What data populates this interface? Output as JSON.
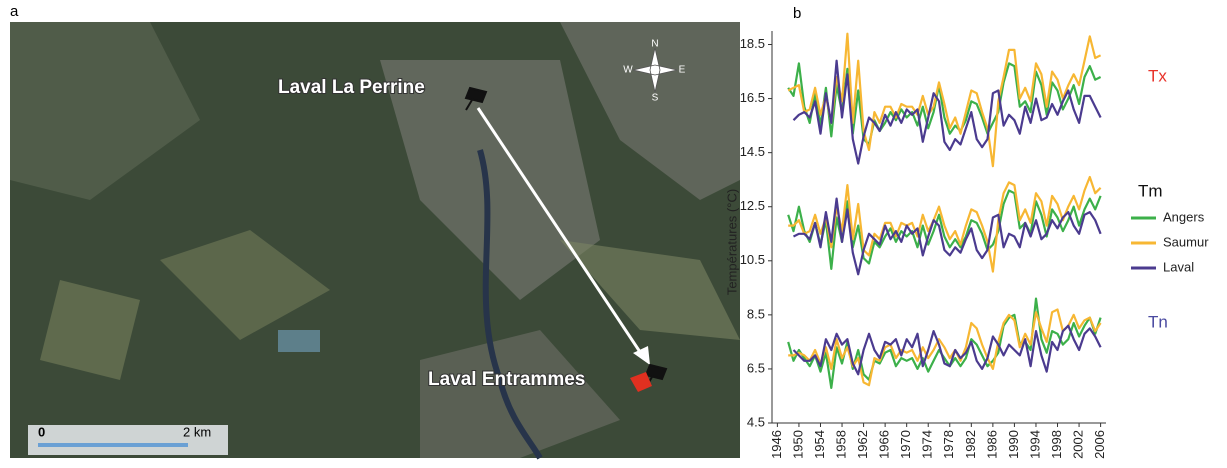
{
  "panel_labels": [
    "a",
    "b"
  ],
  "map": {
    "site_north": "Laval La Perrine",
    "site_south": "Laval Entrammes",
    "compass": [
      "N",
      "E",
      "S",
      "W"
    ],
    "scale_start": "0",
    "scale_end": "2 km"
  },
  "chart_data": {
    "type": "line",
    "ylabel": "Températures (°C)",
    "x": [
      1948,
      1949,
      1950,
      1951,
      1952,
      1953,
      1954,
      1955,
      1956,
      1957,
      1958,
      1959,
      1960,
      1961,
      1962,
      1963,
      1964,
      1965,
      1966,
      1967,
      1968,
      1969,
      1970,
      1971,
      1972,
      1973,
      1974,
      1975,
      1976,
      1977,
      1978,
      1979,
      1980,
      1981,
      1982,
      1983,
      1984,
      1985,
      1986,
      1987,
      1988,
      1989,
      1990,
      1991,
      1992,
      1993,
      1994,
      1995,
      1996,
      1997,
      1998,
      1999,
      2000,
      2001,
      2002,
      2003,
      2004,
      2005,
      2006
    ],
    "xlim": [
      1945,
      2007
    ],
    "xticks": [
      1946,
      1950,
      1954,
      1958,
      1962,
      1966,
      1970,
      1974,
      1978,
      1982,
      1986,
      1990,
      1994,
      1998,
      2002,
      2006
    ],
    "ylim": [
      4.5,
      19
    ],
    "yticks": [
      4.5,
      6.5,
      8.5,
      10.5,
      12.5,
      14.5,
      16.5,
      18.5
    ],
    "series": [
      {
        "name": "Angers",
        "color": "#3cb04a"
      },
      {
        "name": "Saumur",
        "color": "#f7b733"
      },
      {
        "name": "Laval",
        "color": "#4b3b8f"
      }
    ],
    "groups": [
      {
        "name": "Tx",
        "color": "#e8322a",
        "values": [
          [
            16.9,
            16.6,
            17.8,
            16.2,
            15.6,
            16.7,
            15.5,
            16.9,
            15.1,
            17.0,
            16.0,
            17.6,
            15.2,
            16.8,
            15.0,
            14.8,
            15.7,
            15.3,
            15.6,
            16.0,
            15.7,
            16.1,
            15.8,
            16.0,
            15.5,
            16.2,
            15.4,
            16.0,
            17.0,
            15.8,
            15.2,
            15.5,
            15.3,
            15.7,
            16.4,
            16.3,
            15.8,
            15.2,
            15.6,
            16.0,
            17.1,
            17.8,
            17.7,
            16.2,
            16.4,
            16.0,
            17.5,
            17.0,
            15.9,
            17.1,
            16.8,
            16.1,
            16.5,
            17.0,
            16.3,
            17.3,
            17.7,
            17.2,
            17.3
          ],
          [
            16.8,
            16.9,
            17.0,
            16.0,
            16.1,
            16.9,
            15.9,
            16.6,
            15.6,
            17.3,
            16.4,
            18.9,
            15.6,
            17.9,
            15.3,
            14.6,
            16.0,
            15.6,
            16.2,
            16.2,
            15.8,
            16.3,
            16.2,
            16.2,
            15.9,
            16.6,
            15.9,
            16.2,
            17.1,
            16.3,
            15.4,
            15.8,
            15.2,
            16.0,
            16.8,
            16.7,
            16.0,
            15.4,
            14.0,
            16.4,
            17.3,
            18.3,
            18.3,
            16.5,
            16.9,
            16.4,
            17.8,
            17.4,
            16.2,
            17.5,
            17.2,
            16.5,
            17.0,
            17.4,
            17.0,
            17.9,
            18.8,
            18.0,
            18.1
          ],
          [
            null,
            15.7,
            15.9,
            16.0,
            15.8,
            16.4,
            15.2,
            16.7,
            15.6,
            17.9,
            15.8,
            17.4,
            15.0,
            14.1,
            15.1,
            15.8,
            15.6,
            15.3,
            15.9,
            15.5,
            16.0,
            15.6,
            16.1,
            15.9,
            16.1,
            14.9,
            15.8,
            16.7,
            16.4,
            14.9,
            14.6,
            15.0,
            14.8,
            15.4,
            16.0,
            15.0,
            14.7,
            15.0,
            16.7,
            16.8,
            15.5,
            15.9,
            15.7,
            15.2,
            16.2,
            15.6,
            16.5,
            15.7,
            15.8,
            16.3,
            15.9,
            16.4,
            16.8,
            16.1,
            15.6,
            16.6,
            16.6,
            16.2,
            15.8
          ]
        ]
      },
      {
        "name": "Tm",
        "color": "#111111",
        "values": [
          [
            12.2,
            11.6,
            12.5,
            11.6,
            11.2,
            11.9,
            11.1,
            12.0,
            10.2,
            12.1,
            11.2,
            12.7,
            11.0,
            11.8,
            10.6,
            10.4,
            11.2,
            11.0,
            11.4,
            11.7,
            11.2,
            11.6,
            11.4,
            11.6,
            11.0,
            11.8,
            11.1,
            11.6,
            12.2,
            11.4,
            11.0,
            11.3,
            11.0,
            11.4,
            12.0,
            11.9,
            11.5,
            10.9,
            11.1,
            11.6,
            12.6,
            13.1,
            13.0,
            11.7,
            11.9,
            11.5,
            12.7,
            12.2,
            11.4,
            12.4,
            12.1,
            11.6,
            12.0,
            12.5,
            11.8,
            12.4,
            12.8,
            12.4,
            12.9
          ],
          [
            11.8,
            11.8,
            12.0,
            11.5,
            11.6,
            12.2,
            11.5,
            12.1,
            11.0,
            12.5,
            11.6,
            13.3,
            11.3,
            12.6,
            10.9,
            10.7,
            11.5,
            11.3,
            11.9,
            11.9,
            11.4,
            11.9,
            11.8,
            11.9,
            11.4,
            12.2,
            11.6,
            12.0,
            12.5,
            11.8,
            11.3,
            11.6,
            11.1,
            11.8,
            12.4,
            12.3,
            11.8,
            11.2,
            10.1,
            12.0,
            13.0,
            13.4,
            13.3,
            12.0,
            12.4,
            11.9,
            13.0,
            12.7,
            11.8,
            12.9,
            12.6,
            12.0,
            12.5,
            12.9,
            12.4,
            13.1,
            13.6,
            13.0,
            13.2
          ],
          [
            null,
            11.4,
            11.5,
            11.5,
            11.3,
            11.9,
            11.0,
            12.3,
            11.2,
            12.8,
            11.2,
            12.4,
            10.8,
            10.0,
            10.9,
            11.5,
            11.3,
            11.1,
            11.8,
            11.3,
            11.6,
            11.2,
            11.8,
            11.5,
            11.7,
            10.7,
            11.4,
            12.0,
            11.8,
            10.9,
            10.7,
            11.0,
            10.8,
            11.3,
            11.7,
            10.9,
            10.6,
            10.9,
            12.1,
            12.2,
            11.0,
            11.5,
            11.4,
            11.0,
            11.9,
            11.4,
            12.0,
            11.3,
            11.5,
            12.0,
            11.7,
            12.1,
            12.3,
            11.8,
            11.5,
            12.2,
            12.3,
            12.0,
            11.5
          ]
        ]
      },
      {
        "name": "Tn",
        "color": "#4a4aa0",
        "values": [
          [
            7.5,
            6.8,
            7.2,
            6.9,
            6.6,
            7.0,
            6.4,
            7.1,
            5.8,
            7.3,
            6.7,
            7.5,
            6.5,
            7.2,
            6.3,
            6.1,
            6.8,
            6.7,
            7.1,
            7.2,
            6.6,
            6.9,
            6.8,
            6.9,
            6.5,
            6.9,
            6.4,
            6.8,
            7.2,
            6.9,
            6.6,
            6.9,
            6.6,
            6.9,
            7.6,
            7.4,
            7.0,
            6.6,
            6.8,
            7.1,
            8.1,
            8.4,
            8.5,
            7.4,
            7.5,
            7.2,
            9.1,
            7.6,
            7.1,
            7.9,
            7.8,
            7.4,
            7.6,
            8.2,
            7.7,
            8.1,
            8.4,
            7.8,
            8.4
          ],
          [
            7.0,
            7.0,
            7.1,
            7.0,
            6.8,
            7.2,
            6.7,
            7.3,
            6.5,
            7.6,
            6.9,
            7.3,
            6.6,
            6.9,
            6.0,
            5.9,
            6.9,
            6.8,
            7.3,
            7.4,
            6.9,
            7.2,
            7.1,
            7.2,
            6.8,
            7.3,
            6.9,
            7.2,
            7.6,
            7.3,
            6.9,
            7.2,
            6.8,
            7.3,
            8.2,
            8.0,
            7.4,
            6.9,
            6.5,
            7.5,
            8.2,
            8.5,
            8.3,
            7.3,
            7.8,
            7.4,
            8.6,
            8.0,
            7.5,
            8.6,
            8.7,
            7.9,
            8.1,
            8.5,
            8.0,
            8.3,
            8.4,
            7.9,
            8.2
          ],
          [
            null,
            7.2,
            7.0,
            6.8,
            6.8,
            7.0,
            6.6,
            7.6,
            7.2,
            7.8,
            7.4,
            7.6,
            6.7,
            6.3,
            7.2,
            7.8,
            7.2,
            6.9,
            7.5,
            7.4,
            7.6,
            7.0,
            7.6,
            7.3,
            7.8,
            6.6,
            7.2,
            7.9,
            7.4,
            6.7,
            6.6,
            7.2,
            6.9,
            7.1,
            7.5,
            6.8,
            6.5,
            6.9,
            7.7,
            7.4,
            7.0,
            7.4,
            7.2,
            7.0,
            7.6,
            6.6,
            7.9,
            7.0,
            6.4,
            7.5,
            7.2,
            7.9,
            8.1,
            7.6,
            7.2,
            7.8,
            8.0,
            7.7,
            7.3
          ]
        ]
      }
    ]
  }
}
